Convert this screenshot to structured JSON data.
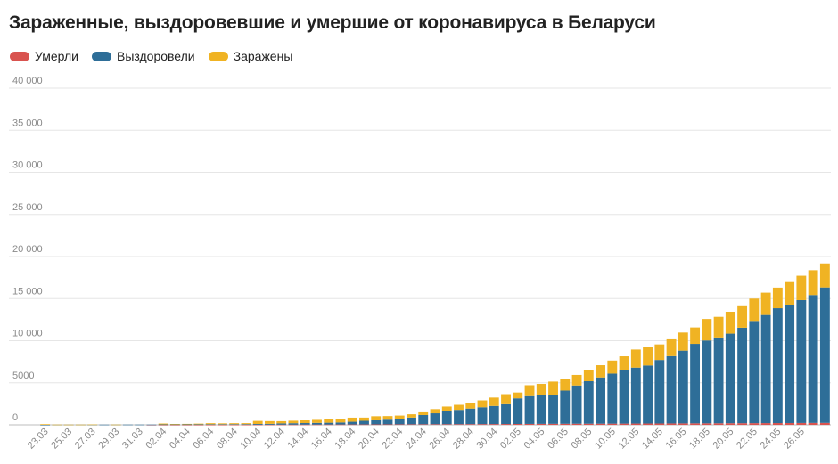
{
  "chart_data": {
    "type": "bar",
    "stacked": true,
    "title": "Зараженные, выздоровевшие и умершие от коронавируса в Беларуси",
    "xlabel": "",
    "ylabel": "",
    "ylim": [
      0,
      40000
    ],
    "yticks": [
      0,
      5000,
      10000,
      15000,
      20000,
      25000,
      30000,
      35000,
      40000
    ],
    "ytick_labels": [
      "0",
      "5000",
      "10 000",
      "15 000",
      "20 000",
      "25 000",
      "30 000",
      "35 000",
      "40 000"
    ],
    "grid": true,
    "legend_position": "top-left",
    "categories": [
      "23.03",
      "24.03",
      "25.03",
      "26.03",
      "27.03",
      "28.03",
      "29.03",
      "30.03",
      "31.03",
      "01.04",
      "02.04",
      "03.04",
      "04.04",
      "05.04",
      "06.04",
      "07.04",
      "08.04",
      "09.04",
      "10.04",
      "11.04",
      "12.04",
      "13.04",
      "14.04",
      "15.04",
      "16.04",
      "17.04",
      "18.04",
      "19.04",
      "20.04",
      "21.04",
      "22.04",
      "23.04",
      "24.04",
      "25.04",
      "26.04",
      "27.04",
      "28.04",
      "29.04",
      "30.04",
      "01.05",
      "02.05",
      "03.05",
      "04.05",
      "05.05",
      "06.05",
      "07.05",
      "08.05",
      "09.05",
      "10.05",
      "11.05",
      "12.05",
      "13.05",
      "14.05",
      "15.05",
      "16.05",
      "17.05",
      "18.05",
      "19.05",
      "20.05",
      "21.05",
      "22.05",
      "23.05",
      "24.05",
      "25.05",
      "26.05",
      "27.05",
      "28.05"
    ],
    "x_tick_labels": [
      "23.03",
      "",
      "25.03",
      "",
      "27.03",
      "",
      "29.03",
      "",
      "31.03",
      "",
      "02.04",
      "",
      "04.04",
      "",
      "06.04",
      "",
      "08.04",
      "",
      "10.04",
      "",
      "12.04",
      "",
      "14.04",
      "",
      "16.04",
      "",
      "18.04",
      "",
      "20.04",
      "",
      "22.04",
      "",
      "24.04",
      "",
      "26.04",
      "",
      "28.04",
      "",
      "30.04",
      "",
      "02.05",
      "",
      "04.05",
      "",
      "06.05",
      "",
      "08.05",
      "",
      "10.05",
      "",
      "12.05",
      "",
      "14.05",
      "",
      "16.05",
      "",
      "18.05",
      "",
      "20.05",
      "",
      "22.05",
      "",
      "24.05",
      "",
      "26.05",
      "",
      ""
    ],
    "series": [
      {
        "name": "Умерли",
        "color": "#d9534f",
        "values": [
          0,
          0,
          0,
          0,
          0,
          0,
          0,
          0,
          0,
          2,
          2,
          3,
          4,
          5,
          8,
          9,
          13,
          13,
          16,
          19,
          23,
          26,
          29,
          33,
          36,
          40,
          45,
          47,
          51,
          55,
          60,
          63,
          67,
          72,
          75,
          79,
          84,
          89,
          93,
          99,
          104,
          112,
          116,
          121,
          126,
          131,
          135,
          137,
          140,
          145,
          151,
          156,
          160,
          165,
          170,
          175,
          179,
          185,
          190,
          194,
          199,
          204,
          208,
          214,
          219,
          224,
          229
        ]
      },
      {
        "name": "Выздоровели",
        "color": "#2e6e98",
        "values": [
          3,
          15,
          18,
          18,
          23,
          23,
          23,
          28,
          28,
          28,
          48,
          48,
          48,
          53,
          61,
          63,
          67,
          71,
          90,
          102,
          146,
          166,
          180,
          197,
          216,
          240,
          320,
          430,
          480,
          550,
          630,
          800,
          1100,
          1300,
          1550,
          1700,
          1850,
          2000,
          2150,
          2350,
          3050,
          3300,
          3400,
          3420,
          3950,
          4550,
          5050,
          5500,
          5950,
          6350,
          6650,
          6900,
          7550,
          8000,
          8650,
          9450,
          9850,
          10200,
          10650,
          11350,
          12150,
          12850,
          13650,
          14050,
          14600,
          15200,
          16100
        ]
      },
      {
        "name": "Заражены",
        "color": "#f0b323",
        "values": [
          76,
          15,
          8,
          9,
          17,
          0,
          8,
          0,
          0,
          0,
          104,
          52,
          62,
          86,
          127,
          105,
          115,
          117,
          358,
          318,
          264,
          295,
          318,
          356,
          451,
          452,
          488,
          383,
          491,
          436,
          413,
          395,
          321,
          498,
          550,
          600,
          610,
          820,
          1000,
          1200,
          690,
          1300,
          1350,
          1600,
          1380,
          1250,
          1370,
          1450,
          1550,
          1650,
          2150,
          2150,
          1850,
          2000,
          2150,
          1950,
          2550,
          2450,
          2600,
          2550,
          2650,
          2650,
          2450,
          2700,
          2900,
          2950,
          2850
        ]
      }
    ]
  }
}
